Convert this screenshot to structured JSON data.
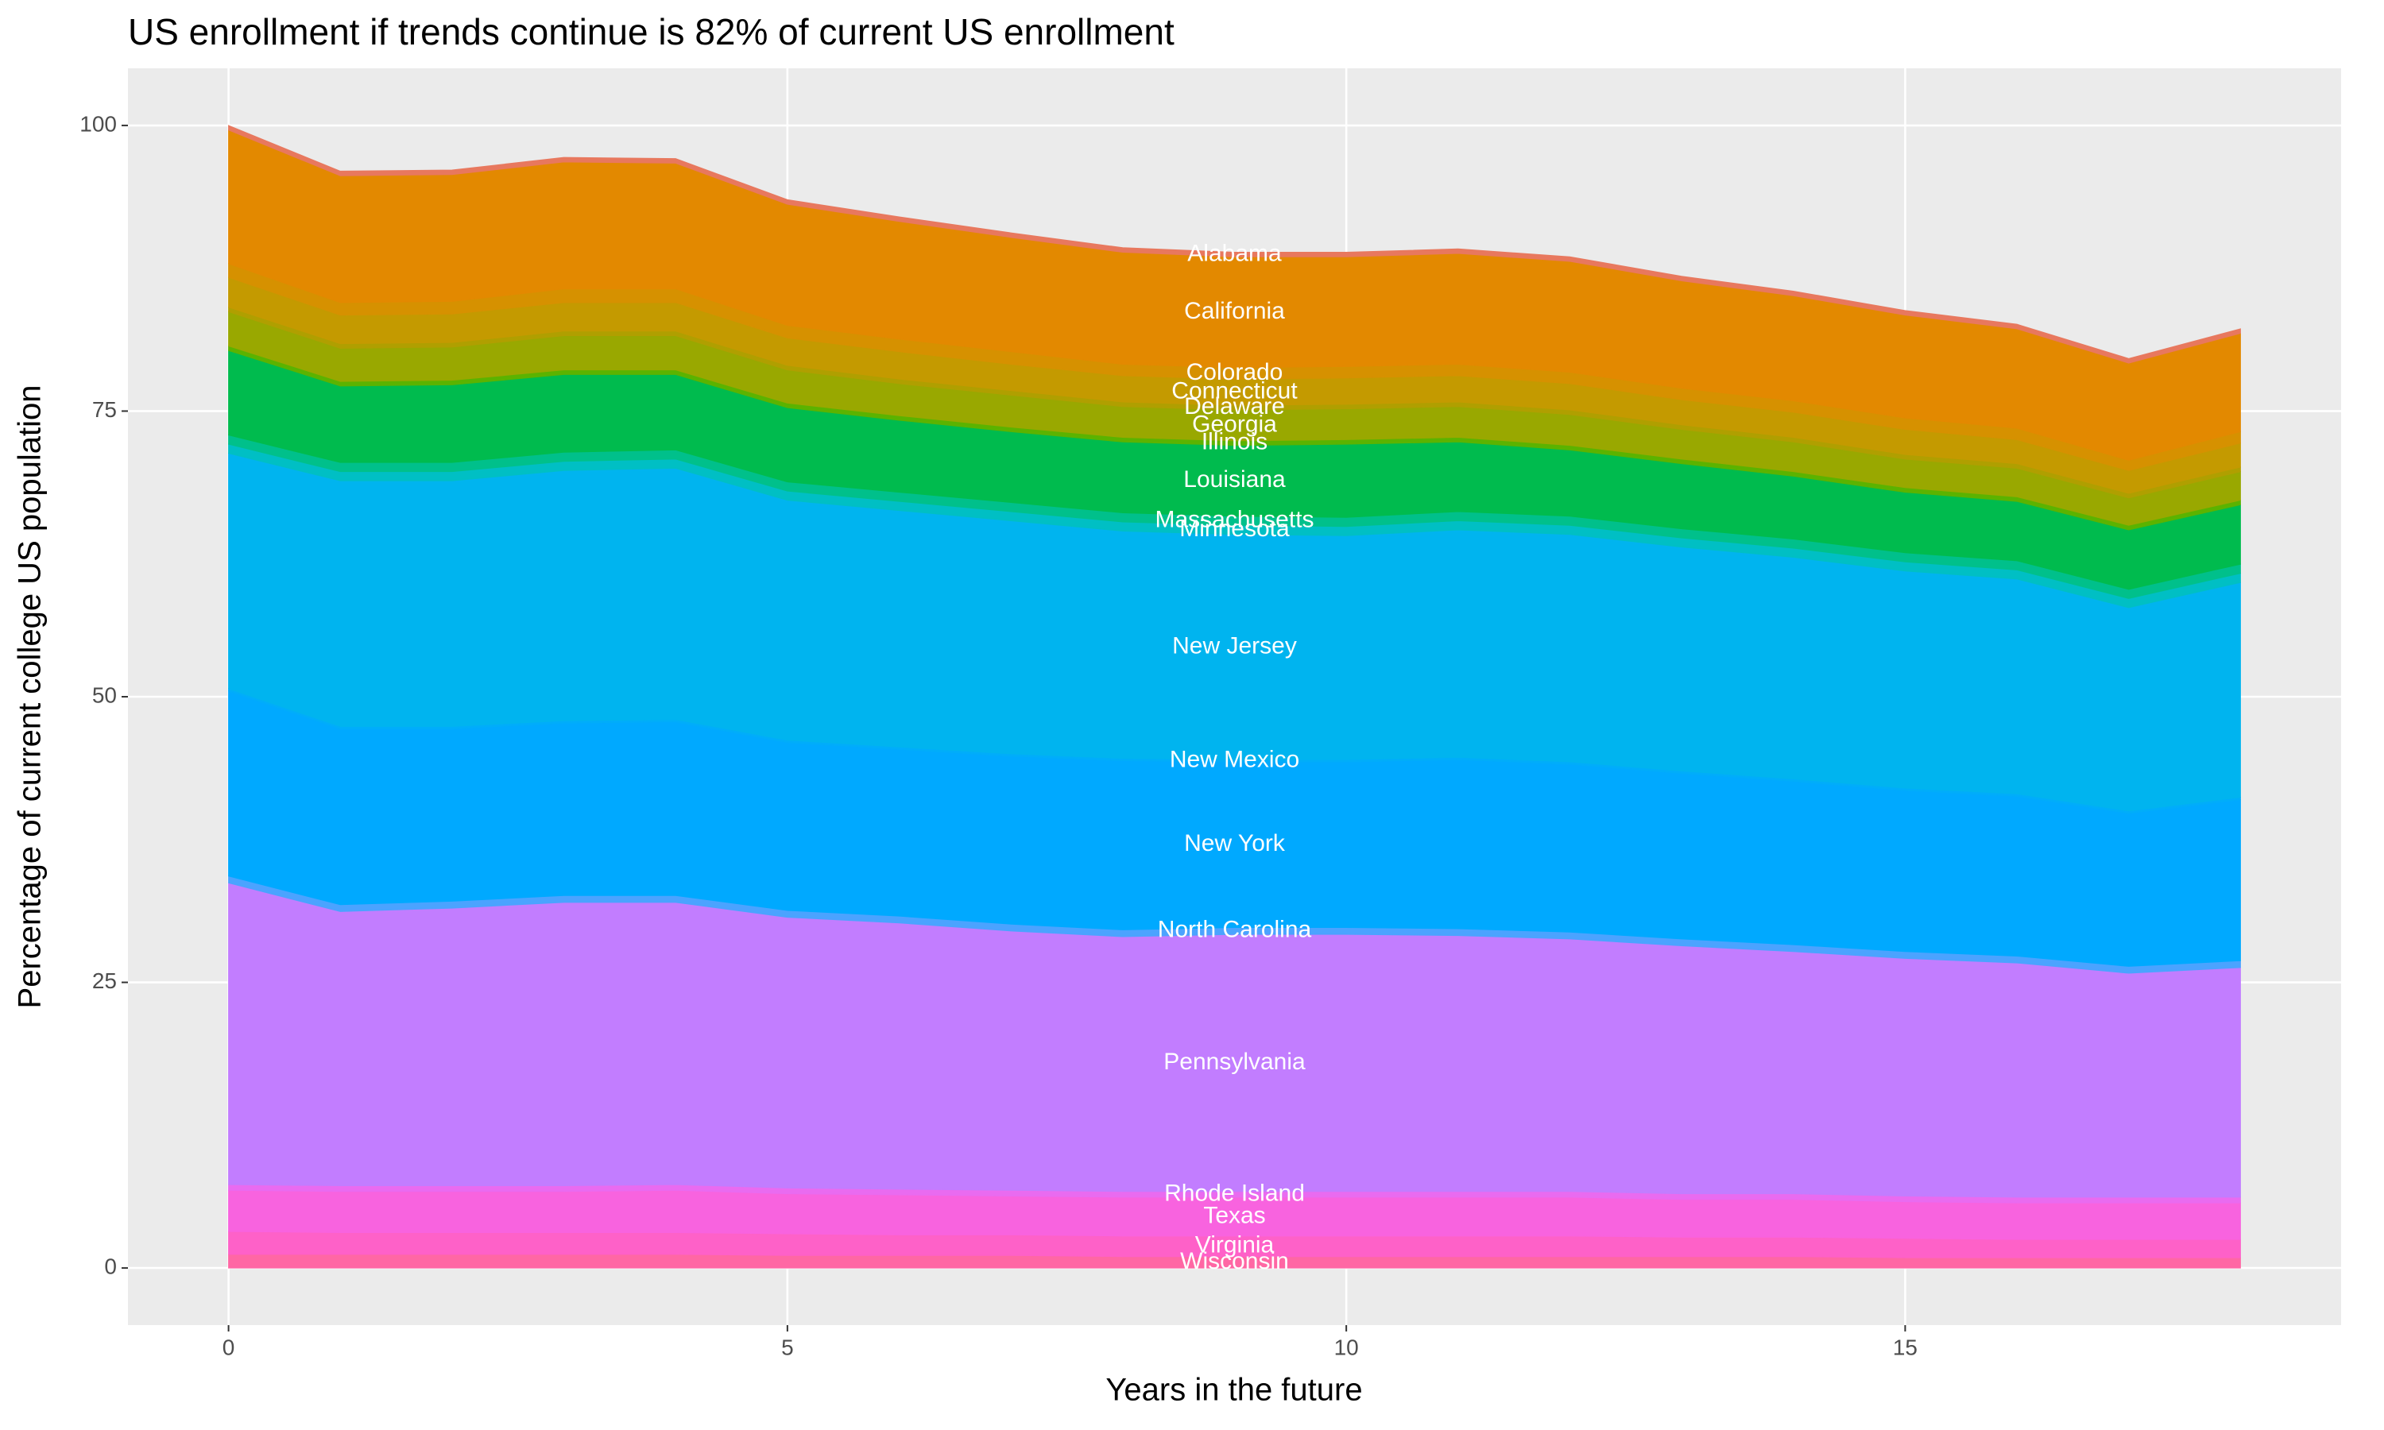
{
  "chart_data": {
    "type": "stacked_area",
    "title": "US enrollment if trends continue is 82% of current US enrollment",
    "x_label": "Years in the future",
    "y_label": "Percentage of current college US population",
    "x": [
      0,
      1,
      2,
      3,
      4,
      5,
      6,
      7,
      8,
      9,
      10,
      11,
      12,
      13,
      14,
      15,
      16,
      17,
      18
    ],
    "xlim": [
      -0.9,
      18.9
    ],
    "xticks": [
      0,
      5,
      10,
      15
    ],
    "ylim": [
      -5,
      105
    ],
    "yticks": [
      0,
      25,
      50,
      75,
      100
    ],
    "grid": true,
    "series": [
      {
        "name": "Alabama",
        "color": "#e8785e",
        "values": [
          0.4,
          0.4,
          0.4,
          0.4,
          0.4,
          0.4,
          0.4,
          0.4,
          0.4,
          0.4,
          0.4,
          0.4,
          0.4,
          0.4,
          0.4,
          0.4,
          0.4,
          0.4,
          0.4
        ]
      },
      {
        "name": "California",
        "color": "#e38900",
        "values": [
          11.7,
          11.1,
          11.1,
          11.1,
          11.0,
          10.6,
          10.3,
          10.0,
          9.8,
          9.7,
          9.6,
          9.7,
          9.7,
          9.4,
          9.2,
          9.0,
          8.7,
          8.5,
          8.6
        ]
      },
      {
        "name": "Colorado",
        "color": "#d69100",
        "values": [
          1.2,
          1.1,
          1.1,
          1.2,
          1.2,
          1.1,
          1.1,
          1.1,
          1.0,
          1.0,
          1.0,
          1.0,
          1.0,
          1.0,
          1.0,
          1.0,
          1.0,
          0.9,
          1.0
        ]
      },
      {
        "name": "Connecticut",
        "color": "#c49a00",
        "values": [
          2.6,
          2.5,
          2.5,
          2.5,
          2.5,
          2.4,
          2.4,
          2.3,
          2.3,
          2.3,
          2.3,
          2.3,
          2.3,
          2.2,
          2.2,
          2.2,
          2.1,
          2.0,
          2.1
        ]
      },
      {
        "name": "Delaware",
        "color": "#b09f00",
        "values": [
          0.4,
          0.4,
          0.4,
          0.4,
          0.4,
          0.4,
          0.4,
          0.4,
          0.4,
          0.4,
          0.4,
          0.4,
          0.4,
          0.4,
          0.4,
          0.4,
          0.4,
          0.4,
          0.4
        ]
      },
      {
        "name": "Georgia",
        "color": "#99a800",
        "values": [
          3.0,
          2.9,
          2.9,
          3.0,
          3.0,
          2.9,
          2.8,
          2.8,
          2.7,
          2.7,
          2.7,
          2.7,
          2.7,
          2.6,
          2.6,
          2.5,
          2.5,
          2.4,
          2.5
        ]
      },
      {
        "name": "Illinois",
        "color": "#5bb300",
        "values": [
          0.4,
          0.4,
          0.4,
          0.4,
          0.4,
          0.4,
          0.4,
          0.4,
          0.4,
          0.4,
          0.4,
          0.4,
          0.4,
          0.4,
          0.4,
          0.4,
          0.4,
          0.4,
          0.4
        ]
      },
      {
        "name": "Louisiana",
        "color": "#00bb4e",
        "values": [
          7.4,
          6.7,
          6.8,
          6.8,
          6.6,
          6.5,
          6.3,
          6.2,
          6.2,
          6.2,
          6.4,
          6.1,
          5.8,
          5.7,
          5.5,
          5.3,
          5.2,
          5.2,
          5.2
        ]
      },
      {
        "name": "Massachusetts",
        "color": "#00c08b",
        "values": [
          0.8,
          0.8,
          0.8,
          0.8,
          0.8,
          0.8,
          0.8,
          0.8,
          0.8,
          0.8,
          0.8,
          0.8,
          0.8,
          0.8,
          0.8,
          0.8,
          0.8,
          0.8,
          0.8
        ]
      },
      {
        "name": "Minnesota",
        "color": "#00bfc4",
        "values": [
          0.8,
          0.8,
          0.8,
          0.8,
          0.8,
          0.8,
          0.8,
          0.8,
          0.8,
          0.8,
          0.8,
          0.8,
          0.8,
          0.8,
          0.8,
          0.8,
          0.8,
          0.8,
          0.8
        ]
      },
      {
        "name": "New Jersey",
        "color": "#00b4ef",
        "values": [
          20.6,
          21.5,
          21.5,
          21.9,
          22.0,
          21.0,
          20.7,
          20.4,
          19.9,
          19.7,
          19.6,
          19.9,
          19.9,
          19.6,
          19.4,
          19.0,
          18.8,
          17.8,
          18.8
        ]
      },
      {
        "name": "New Mexico",
        "color": "#00adfa",
        "values": [
          0.2,
          0.2,
          0.2,
          0.2,
          0.2,
          0.2,
          0.2,
          0.2,
          0.2,
          0.2,
          0.2,
          0.2,
          0.2,
          0.2,
          0.2,
          0.2,
          0.2,
          0.2,
          0.2
        ]
      },
      {
        "name": "New York",
        "color": "#00a9ff",
        "values": [
          16.2,
          15.4,
          15.1,
          15.1,
          15.2,
          14.7,
          14.6,
          14.7,
          14.8,
          14.5,
          14.5,
          14.8,
          14.7,
          14.5,
          14.3,
          14.1,
          14.0,
          13.4,
          14.1
        ]
      },
      {
        "name": "North Carolina",
        "color": "#4ba3ff",
        "values": [
          0.6,
          0.6,
          0.6,
          0.6,
          0.6,
          0.6,
          0.6,
          0.6,
          0.6,
          0.6,
          0.6,
          0.6,
          0.6,
          0.6,
          0.6,
          0.6,
          0.6,
          0.6,
          0.6
        ]
      },
      {
        "name": "Pennsylvania",
        "color": "#c27dff",
        "values": [
          26.4,
          24.0,
          24.3,
          24.8,
          24.7,
          23.7,
          23.3,
          22.7,
          22.3,
          22.5,
          22.5,
          22.4,
          22.1,
          21.7,
          21.2,
          20.8,
          20.5,
          19.6,
          20.1
        ]
      },
      {
        "name": "Rhode Island",
        "color": "#e96bf0",
        "values": [
          0.5,
          0.5,
          0.5,
          0.5,
          0.5,
          0.5,
          0.5,
          0.5,
          0.5,
          0.5,
          0.5,
          0.5,
          0.5,
          0.5,
          0.5,
          0.5,
          0.5,
          0.5,
          0.5
        ]
      },
      {
        "name": "Texas",
        "color": "#f863df",
        "values": [
          3.6,
          3.6,
          3.6,
          3.6,
          3.7,
          3.5,
          3.5,
          3.4,
          3.4,
          3.4,
          3.4,
          3.4,
          3.4,
          3.3,
          3.3,
          3.2,
          3.2,
          3.2,
          3.2
        ]
      },
      {
        "name": "Virginia",
        "color": "#fe61c8",
        "values": [
          2.0,
          1.9,
          1.9,
          1.9,
          1.9,
          1.9,
          1.8,
          1.8,
          1.8,
          1.8,
          1.8,
          1.8,
          1.8,
          1.7,
          1.7,
          1.7,
          1.6,
          1.6,
          1.6
        ]
      },
      {
        "name": "Wisconsin",
        "color": "#ff67a4",
        "values": [
          1.2,
          1.2,
          1.2,
          1.2,
          1.2,
          1.1,
          1.1,
          1.1,
          1.0,
          1.0,
          1.0,
          1.0,
          1.0,
          1.0,
          1.0,
          0.9,
          0.9,
          0.9,
          0.9
        ]
      }
    ]
  }
}
